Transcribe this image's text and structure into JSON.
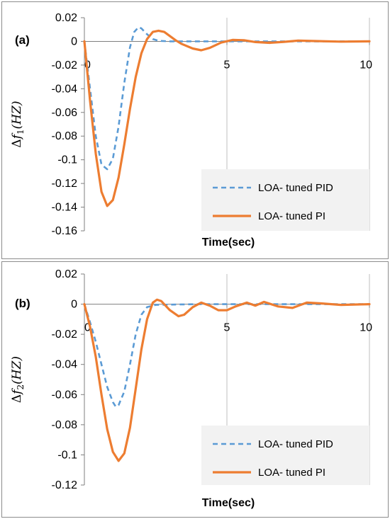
{
  "chart_data": [
    {
      "type": "line",
      "panel_label": "(a)",
      "xlabel": "Time(sec)",
      "ylabel": "Δf1(HZ)",
      "ylabel_symbol": "Δ",
      "ylabel_var": "f",
      "ylabel_sub": "1",
      "ylabel_unit": "(HZ)",
      "xlim": [
        0,
        10
      ],
      "ylim": [
        -0.16,
        0.02
      ],
      "x_ticks": [
        0,
        5,
        10
      ],
      "x_tick_labels": [
        "0",
        "5",
        "10"
      ],
      "y_ticks": [
        0.02,
        0,
        -0.02,
        -0.04,
        -0.06,
        -0.08,
        -0.1,
        -0.12,
        -0.14,
        -0.16
      ],
      "y_tick_labels": [
        "0.02",
        "0",
        "-0.02",
        "-0.04",
        "-0.06",
        "-0.08",
        "-0.1",
        "-0.12",
        "-0.14",
        "-0.16"
      ],
      "grid": "vertical",
      "legend_position": "bottom-right",
      "series": [
        {
          "name": "LOA- tuned PID",
          "color": "#5b9bd5",
          "dash": "dashed",
          "points": [
            [
              0,
              0
            ],
            [
              0.2,
              -0.04
            ],
            [
              0.4,
              -0.08
            ],
            [
              0.6,
              -0.104
            ],
            [
              0.8,
              -0.108
            ],
            [
              1.0,
              -0.099
            ],
            [
              1.2,
              -0.072
            ],
            [
              1.4,
              -0.035
            ],
            [
              1.6,
              -0.005
            ],
            [
              1.75,
              0.008
            ],
            [
              1.9,
              0.012
            ],
            [
              2.0,
              0.011
            ],
            [
              2.2,
              0.006
            ],
            [
              2.4,
              0.002
            ],
            [
              2.6,
              0.0005
            ],
            [
              3.0,
              0
            ],
            [
              4.0,
              0
            ],
            [
              6.0,
              0
            ],
            [
              8.0,
              0
            ],
            [
              10.0,
              0
            ]
          ]
        },
        {
          "name": "LOA- tuned PI",
          "color": "#ed7d31",
          "dash": "solid",
          "points": [
            [
              0,
              0
            ],
            [
              0.2,
              -0.05
            ],
            [
              0.4,
              -0.095
            ],
            [
              0.6,
              -0.127
            ],
            [
              0.8,
              -0.139
            ],
            [
              1.0,
              -0.134
            ],
            [
              1.2,
              -0.115
            ],
            [
              1.4,
              -0.087
            ],
            [
              1.6,
              -0.057
            ],
            [
              1.8,
              -0.03
            ],
            [
              2.0,
              -0.01
            ],
            [
              2.2,
              0.002
            ],
            [
              2.4,
              0.008
            ],
            [
              2.6,
              0.009
            ],
            [
              2.8,
              0.008
            ],
            [
              3.0,
              0.0045
            ],
            [
              3.2,
              0.001
            ],
            [
              3.4,
              -0.002
            ],
            [
              3.8,
              -0.006
            ],
            [
              4.1,
              -0.0075
            ],
            [
              4.4,
              -0.0055
            ],
            [
              4.8,
              -0.001
            ],
            [
              5.2,
              0.0012
            ],
            [
              5.6,
              0.001
            ],
            [
              6.0,
              -0.0006
            ],
            [
              6.5,
              -0.0012
            ],
            [
              7.0,
              -0.0004
            ],
            [
              7.5,
              0.0006
            ],
            [
              8.0,
              0.0003
            ],
            [
              9.0,
              -0.0002
            ],
            [
              10.0,
              0
            ]
          ]
        }
      ]
    },
    {
      "type": "line",
      "panel_label": "(b)",
      "xlabel": "Time(sec)",
      "ylabel": "Δf2(HZ)",
      "ylabel_symbol": "Δ",
      "ylabel_var": "f",
      "ylabel_sub": "2",
      "ylabel_unit": "(HZ)",
      "xlim": [
        0,
        10
      ],
      "ylim": [
        -0.12,
        0.02
      ],
      "x_ticks": [
        0,
        5,
        10
      ],
      "x_tick_labels": [
        "0",
        "5",
        "10"
      ],
      "y_ticks": [
        0.02,
        0,
        -0.02,
        -0.04,
        -0.06,
        -0.08,
        -0.1,
        -0.12
      ],
      "y_tick_labels": [
        "0.02",
        "0",
        "-0.02",
        "-0.04",
        "-0.06",
        "-0.08",
        "-0.1",
        "-0.12"
      ],
      "grid": "vertical",
      "legend_position": "bottom-right",
      "series": [
        {
          "name": "LOA- tuned PID",
          "color": "#5b9bd5",
          "dash": "dashed",
          "points": [
            [
              0,
              0
            ],
            [
              0.2,
              -0.012
            ],
            [
              0.4,
              -0.025
            ],
            [
              0.6,
              -0.04
            ],
            [
              0.8,
              -0.055
            ],
            [
              1.0,
              -0.065
            ],
            [
              1.1,
              -0.068
            ],
            [
              1.2,
              -0.067
            ],
            [
              1.4,
              -0.058
            ],
            [
              1.6,
              -0.04
            ],
            [
              1.8,
              -0.02
            ],
            [
              2.0,
              -0.007
            ],
            [
              2.2,
              -0.002
            ],
            [
              2.5,
              -0.0005
            ],
            [
              3.0,
              -0.0003
            ],
            [
              4.0,
              0
            ],
            [
              6.0,
              0
            ],
            [
              8.0,
              0
            ],
            [
              10.0,
              0
            ]
          ]
        },
        {
          "name": "LOA- tuned PI",
          "color": "#ed7d31",
          "dash": "solid",
          "points": [
            [
              0,
              0
            ],
            [
              0.2,
              -0.015
            ],
            [
              0.4,
              -0.035
            ],
            [
              0.6,
              -0.06
            ],
            [
              0.8,
              -0.083
            ],
            [
              1.0,
              -0.098
            ],
            [
              1.2,
              -0.104
            ],
            [
              1.4,
              -0.099
            ],
            [
              1.6,
              -0.082
            ],
            [
              1.8,
              -0.056
            ],
            [
              2.0,
              -0.03
            ],
            [
              2.2,
              -0.01
            ],
            [
              2.4,
              0.001
            ],
            [
              2.55,
              0.003
            ],
            [
              2.7,
              0.002
            ],
            [
              3.0,
              -0.004
            ],
            [
              3.3,
              -0.008
            ],
            [
              3.5,
              -0.007
            ],
            [
              3.8,
              -0.002
            ],
            [
              4.1,
              0.001
            ],
            [
              4.4,
              -0.001
            ],
            [
              4.7,
              -0.004
            ],
            [
              5.0,
              -0.004
            ],
            [
              5.3,
              -0.0015
            ],
            [
              5.7,
              0.001
            ],
            [
              6.0,
              -0.001
            ],
            [
              6.3,
              0.0015
            ],
            [
              6.8,
              -0.0015
            ],
            [
              7.3,
              -0.0025
            ],
            [
              7.8,
              0.001
            ],
            [
              8.3,
              0.0005
            ],
            [
              9.0,
              -0.0005
            ],
            [
              10.0,
              0
            ]
          ]
        }
      ]
    }
  ]
}
